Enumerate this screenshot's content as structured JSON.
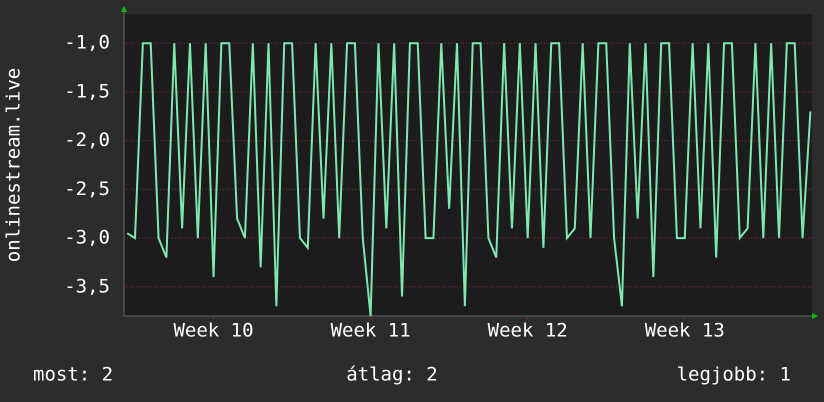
{
  "chart_data": {
    "type": "line",
    "ylabel": "onlinestream.live",
    "ylim": [
      -3.8,
      -0.7
    ],
    "yticks": [
      {
        "value": -1.0,
        "label": "-1,0"
      },
      {
        "value": -1.5,
        "label": "-1,5"
      },
      {
        "value": -2.0,
        "label": "-2,0"
      },
      {
        "value": -2.5,
        "label": "-2,5"
      },
      {
        "value": -3.0,
        "label": "-3,0"
      },
      {
        "value": -3.5,
        "label": "-3,5"
      }
    ],
    "xlim": [
      9.93,
      14.31
    ],
    "xticks": [
      {
        "value": 10.5,
        "label": "Week 10"
      },
      {
        "value": 11.5,
        "label": "Week 11"
      },
      {
        "value": 12.5,
        "label": "Week 12"
      },
      {
        "value": 13.5,
        "label": "Week 13"
      }
    ],
    "grid": true,
    "x": [
      9.95,
      10,
      10.05,
      10.1,
      10.15,
      10.2,
      10.25,
      10.3,
      10.35,
      10.4,
      10.45,
      10.5,
      10.55,
      10.6,
      10.65,
      10.7,
      10.75,
      10.8,
      10.85,
      10.9,
      10.95,
      11,
      11.05,
      11.1,
      11.15,
      11.2,
      11.25,
      11.3,
      11.35,
      11.4,
      11.45,
      11.5,
      11.55,
      11.6,
      11.65,
      11.7,
      11.75,
      11.8,
      11.85,
      11.9,
      11.95,
      12,
      12.05,
      12.1,
      12.15,
      12.2,
      12.25,
      12.3,
      12.35,
      12.4,
      12.45,
      12.5,
      12.55,
      12.6,
      12.65,
      12.7,
      12.75,
      12.8,
      12.85,
      12.9,
      12.95,
      13,
      13.05,
      13.1,
      13.15,
      13.2,
      13.25,
      13.3,
      13.35,
      13.4,
      13.45,
      13.5,
      13.55,
      13.6,
      13.65,
      13.7,
      13.75,
      13.8,
      13.85,
      13.9,
      13.95,
      14,
      14.05,
      14.1,
      14.15,
      14.2,
      14.25,
      14.3
    ],
    "series": [
      {
        "color": "#7de8b0",
        "values": [
          -2.95,
          -3.0,
          -1.0,
          -1.0,
          -3.0,
          -3.2,
          -1.0,
          -2.9,
          -1.0,
          -3.0,
          -1.0,
          -3.4,
          -1.0,
          -1.0,
          -2.8,
          -3.0,
          -1.0,
          -3.3,
          -1.0,
          -3.7,
          -1.0,
          -1.0,
          -3.0,
          -3.1,
          -1.0,
          -2.8,
          -1.0,
          -3.0,
          -1.0,
          -1.0,
          -3.0,
          -3.8,
          -1.0,
          -2.9,
          -1.0,
          -3.6,
          -1.0,
          -1.0,
          -3.0,
          -3.0,
          -1.0,
          -2.7,
          -1.0,
          -3.7,
          -1.0,
          -1.0,
          -3.0,
          -3.2,
          -1.0,
          -2.9,
          -1.0,
          -3.0,
          -1.0,
          -3.1,
          -1.0,
          -1.0,
          -3.0,
          -2.9,
          -1.0,
          -3.0,
          -1.0,
          -1.0,
          -3.0,
          -3.7,
          -1.0,
          -2.8,
          -1.0,
          -3.4,
          -1.0,
          -1.0,
          -3.0,
          -3.0,
          -1.0,
          -2.9,
          -1.0,
          -3.2,
          -1.0,
          -1.0,
          -3.0,
          -2.9,
          -1.0,
          -3.0,
          -1.0,
          -3.0,
          -1.0,
          -1.0,
          -3.0,
          -1.7
        ]
      }
    ],
    "footer": {
      "current": "most: 2",
      "average": "átlag: 2",
      "best": "legjobb: 1"
    }
  }
}
